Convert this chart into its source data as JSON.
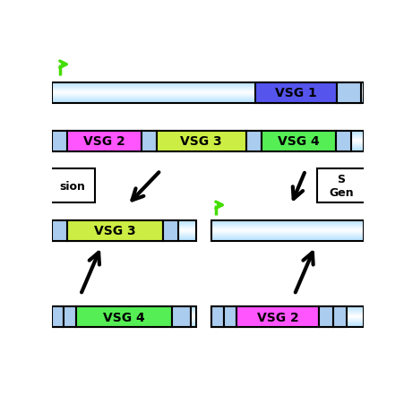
{
  "bg_color": "#ffffff",
  "vsg1_color": "#5555ee",
  "vsg2_color": "#ff55ff",
  "vsg3_color": "#ccee44",
  "vsg4_color": "#55ee55",
  "small_box_color": "#aaccee",
  "green_arrow_color": "#44dd00",
  "black_arrow_color": "#000000",
  "labels": {
    "vsg1": "VSG 1",
    "vsg2": "VSG 2",
    "vsg3": "VSG 3",
    "vsg4": "VSG 4",
    "left_box": "sion",
    "right_box": "S\nGen"
  },
  "bar_lw": 1.5,
  "arrow_lw": 3.0,
  "fontsize": 10
}
